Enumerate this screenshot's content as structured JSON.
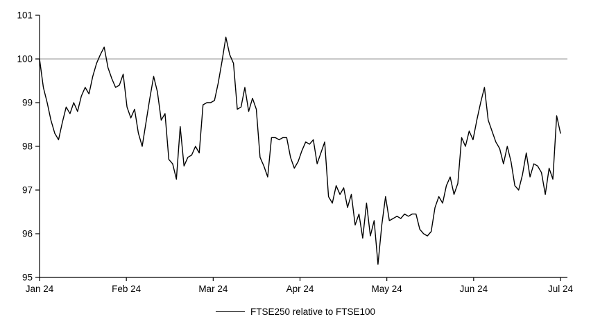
{
  "chart_data": {
    "type": "line",
    "title": "",
    "legend": "FTSE250 relative to FTSE100",
    "x_tick_labels": [
      "Jan 24",
      "Feb 24",
      "Mar 24",
      "Apr 24",
      "May 24",
      "Jun 24",
      "Jul 24"
    ],
    "ylim": [
      95,
      101
    ],
    "y_tick_step": 1,
    "y_tick_labels": [
      "95",
      "96",
      "97",
      "98",
      "99",
      "100",
      "101"
    ],
    "baseline": 100,
    "baseline_color": "#a6a6a6",
    "grid": false,
    "legend_position": "bottom-center",
    "series": [
      {
        "name": "FTSE250 relative to FTSE100",
        "color": "#000000",
        "values": [
          100.0,
          99.35,
          99.0,
          98.6,
          98.3,
          98.15,
          98.55,
          98.9,
          98.75,
          99.0,
          98.8,
          99.15,
          99.35,
          99.2,
          99.6,
          99.9,
          100.1,
          100.27,
          99.8,
          99.55,
          99.35,
          99.4,
          99.65,
          98.9,
          98.65,
          98.85,
          98.3,
          98.0,
          98.55,
          99.1,
          99.6,
          99.25,
          98.6,
          98.75,
          97.7,
          97.6,
          97.25,
          98.45,
          97.55,
          97.75,
          97.8,
          98.0,
          97.85,
          98.95,
          99.0,
          99.0,
          99.05,
          99.45,
          99.95,
          100.5,
          100.1,
          99.9,
          98.85,
          98.9,
          99.35,
          98.8,
          99.1,
          98.85,
          97.75,
          97.55,
          97.3,
          98.2,
          98.2,
          98.15,
          98.2,
          98.2,
          97.75,
          97.5,
          97.65,
          97.9,
          98.1,
          98.05,
          98.15,
          97.6,
          97.85,
          98.1,
          96.85,
          96.7,
          97.1,
          96.9,
          97.05,
          96.6,
          96.9,
          96.2,
          96.45,
          95.9,
          96.7,
          95.95,
          96.3,
          95.3,
          96.2,
          96.85,
          96.3,
          96.35,
          96.4,
          96.35,
          96.45,
          96.4,
          96.45,
          96.45,
          96.1,
          96.0,
          95.95,
          96.05,
          96.6,
          96.85,
          96.7,
          97.1,
          97.3,
          96.9,
          97.15,
          98.2,
          98.0,
          98.35,
          98.15,
          98.6,
          99.0,
          99.35,
          98.6,
          98.35,
          98.1,
          97.95,
          97.6,
          98.0,
          97.65,
          97.1,
          97.0,
          97.35,
          97.85,
          97.3,
          97.6,
          97.55,
          97.4,
          96.9,
          97.5,
          97.25,
          98.7,
          98.3
        ]
      }
    ]
  }
}
